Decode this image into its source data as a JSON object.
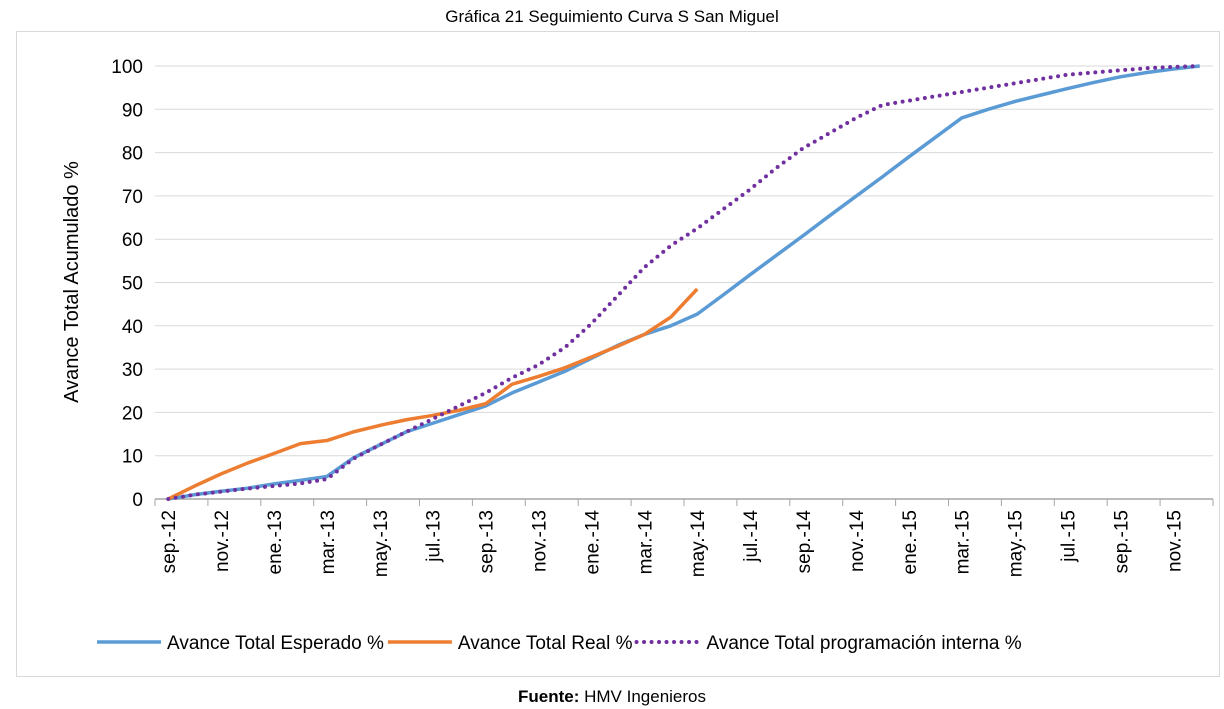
{
  "chart_data": {
    "type": "line",
    "title": "Gráfica 21 Seguimiento Curva S San Miguel",
    "y_label": "Avance Total Acumulado %",
    "source_label": "Fuente:",
    "source": "HMV Ingenieros",
    "categories": [
      "sep.-12",
      null,
      "nov.-12",
      null,
      "ene.-13",
      null,
      "mar.-13",
      null,
      "may.-13",
      null,
      "jul.-13",
      null,
      "sep.-13",
      null,
      "nov.-13",
      null,
      "ene.-14",
      null,
      "mar.-14",
      null,
      "may.-14",
      null,
      "jul.-14",
      null,
      "sep.-14",
      null,
      "nov.-14",
      null,
      "ene.-15",
      null,
      "mar.-15",
      null,
      "may.-15",
      null,
      "jul.-15",
      null,
      "sep.-15",
      null,
      "nov.-15",
      null
    ],
    "series": [
      {
        "name": "Avance Total Esperado %",
        "color": "#5b9bd5",
        "line_style": "solid",
        "values": [
          0,
          1,
          1.8,
          2.5,
          3.5,
          4.3,
          5.2,
          9.5,
          12.5,
          15.5,
          17.5,
          19.5,
          21.5,
          24.5,
          27,
          29.5,
          32.5,
          35.5,
          38,
          40,
          42.7,
          47.2,
          51.8,
          56.3,
          60.8,
          65.4,
          69.9,
          74.4,
          79,
          83.5,
          88,
          90,
          91.8,
          93.3,
          94.8,
          96.2,
          97.5,
          98.5,
          99.3,
          100
        ]
      },
      {
        "name": "Avance Total Real %",
        "color": "#ed7d31",
        "line_style": "solid",
        "values": [
          0,
          3,
          5.8,
          8.3,
          10.5,
          12.8,
          13.5,
          15.5,
          17,
          18.3,
          19.3,
          20.5,
          22,
          26.5,
          28.3,
          30.3,
          32.8,
          35.3,
          38,
          42,
          48.5,
          null,
          null,
          null,
          null,
          null,
          null,
          null,
          null,
          null,
          null,
          null,
          null,
          null,
          null,
          null,
          null,
          null,
          null,
          null
        ]
      },
      {
        "name": "Avance Total programación interna %",
        "color": "#7030a0",
        "line_style": "dotted",
        "values": [
          0,
          1,
          1.7,
          2.4,
          3,
          3.6,
          4.6,
          9.3,
          12.5,
          15.5,
          18.5,
          21.5,
          24.5,
          28,
          31,
          35,
          40.5,
          47,
          53.5,
          58.5,
          62.5,
          67,
          71.5,
          76.5,
          81,
          84.5,
          88,
          91,
          92,
          93,
          94,
          95,
          96,
          97,
          98,
          98.5,
          99,
          99.5,
          99.8,
          100
        ]
      }
    ],
    "ylim": [
      0,
      100
    ],
    "yticks": [
      0,
      10,
      20,
      30,
      40,
      50,
      60,
      70,
      80,
      90,
      100
    ],
    "grid": true,
    "legend": "bottom"
  }
}
